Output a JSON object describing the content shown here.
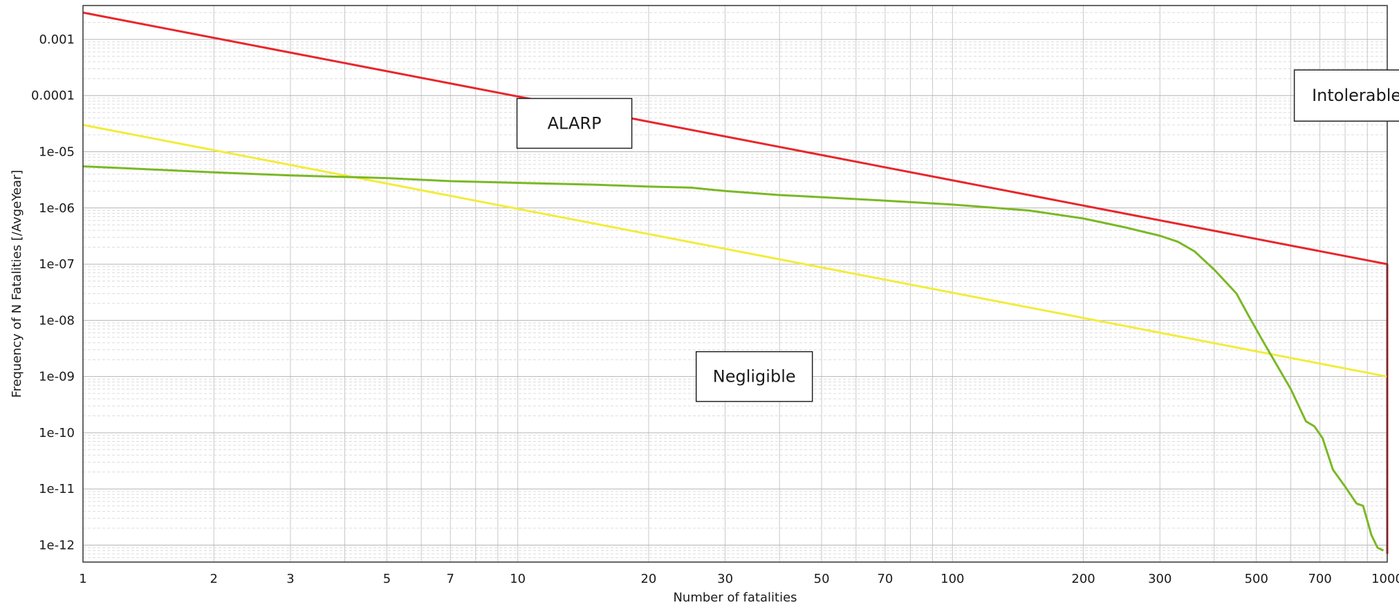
{
  "chart_data": {
    "type": "line",
    "xlabel": "Number of fatalities",
    "ylabel": "Frequency of N Fatalities [/AvgeYear]",
    "x_scale": "log",
    "y_scale": "log",
    "xlim": [
      1,
      1000
    ],
    "ylim": [
      5e-13,
      0.004
    ],
    "grid": true,
    "x_ticks": [
      1,
      2,
      3,
      5,
      7,
      10,
      20,
      30,
      50,
      70,
      100,
      200,
      300,
      500,
      700,
      1000
    ],
    "x_tick_labels": [
      "1",
      "2",
      "3",
      "5",
      "7",
      "10",
      "20",
      "30",
      "50",
      "70",
      "100",
      "200",
      "300",
      "500",
      "700",
      "1000"
    ],
    "y_ticks": [
      0.001,
      0.0001,
      1e-05,
      1e-06,
      1e-07,
      1e-08,
      1e-09,
      1e-10,
      1e-11,
      1e-12
    ],
    "y_tick_labels": [
      "0.001",
      "0.0001",
      "1e-05",
      "1e-06",
      "1e-07",
      "1e-08",
      "1e-09",
      "1e-10",
      "1e-11",
      "1e-12"
    ],
    "annotations": [
      {
        "text": "ALARP",
        "x": 13.5,
        "y": 3.2e-05
      },
      {
        "text": "Intolerable",
        "x": 850,
        "y": 0.0001
      },
      {
        "text": "Negligible",
        "x": 35,
        "y": 1e-09
      }
    ],
    "series": [
      {
        "color": "#e8262b",
        "points": [
          [
            1,
            0.003
          ],
          [
            1000,
            1e-07
          ],
          [
            1000,
            7e-13
          ]
        ]
      },
      {
        "color": "#f2ec3c",
        "points": [
          [
            1,
            3e-05
          ],
          [
            1000,
            1e-09
          ]
        ]
      },
      {
        "color": "#7ab825",
        "points": [
          [
            1,
            5.5e-06
          ],
          [
            2,
            4.3e-06
          ],
          [
            3,
            3.8e-06
          ],
          [
            5,
            3.4e-06
          ],
          [
            7,
            3e-06
          ],
          [
            10,
            2.8e-06
          ],
          [
            15,
            2.6e-06
          ],
          [
            20,
            2.4e-06
          ],
          [
            25,
            2.3e-06
          ],
          [
            30,
            2e-06
          ],
          [
            40,
            1.7e-06
          ],
          [
            50,
            1.55e-06
          ],
          [
            70,
            1.35e-06
          ],
          [
            100,
            1.15e-06
          ],
          [
            150,
            9e-07
          ],
          [
            200,
            6.5e-07
          ],
          [
            250,
            4.5e-07
          ],
          [
            300,
            3.2e-07
          ],
          [
            330,
            2.5e-07
          ],
          [
            360,
            1.7e-07
          ],
          [
            400,
            8e-08
          ],
          [
            450,
            3e-08
          ],
          [
            480,
            1.2e-08
          ],
          [
            520,
            4e-09
          ],
          [
            560,
            1.5e-09
          ],
          [
            600,
            6e-10
          ],
          [
            650,
            1.6e-10
          ],
          [
            680,
            1.3e-10
          ],
          [
            710,
            8e-11
          ],
          [
            750,
            2.2e-11
          ],
          [
            800,
            1.1e-11
          ],
          [
            850,
            5.5e-12
          ],
          [
            880,
            5e-12
          ],
          [
            920,
            1.5e-12
          ],
          [
            950,
            9e-13
          ],
          [
            980,
            8e-13
          ]
        ]
      }
    ]
  }
}
